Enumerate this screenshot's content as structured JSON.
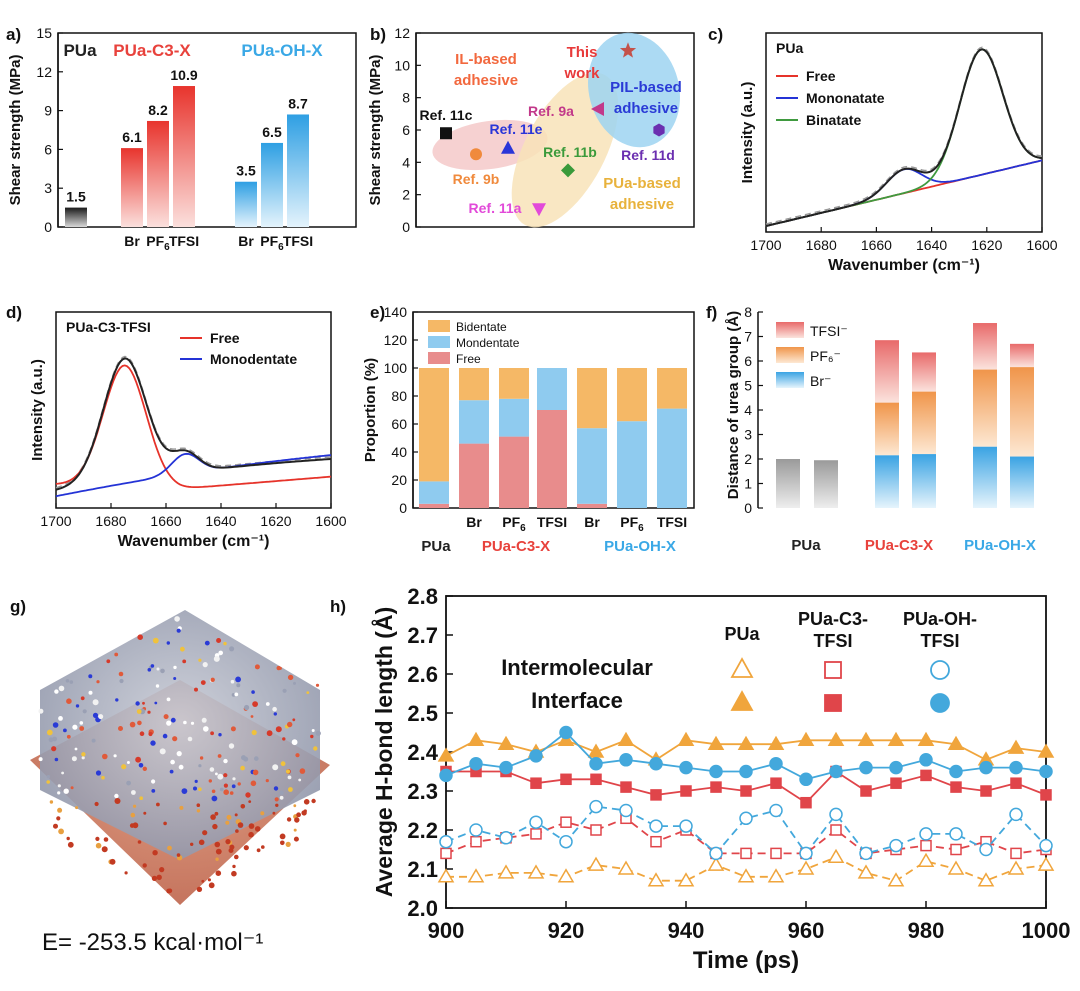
{
  "colors": {
    "pua": "#222222",
    "c3": "#e8423c",
    "oh": "#3aa8e6",
    "bidentate": "#f5b866",
    "mondentate": "#8fcbef",
    "free": "#e88c8c",
    "fit_free": "#e6332a",
    "fit_mono": "#2433d6",
    "fit_bin": "#3f9a3f",
    "pua_line": "#f0a53c",
    "c3_line": "#e0454a",
    "oh_line": "#43a8dc"
  },
  "chart_data": [
    {
      "panel": "a)",
      "type": "bar",
      "ylabel": "Shear strength (MPa)",
      "ylim": [
        0,
        15
      ],
      "yticks": [
        "0",
        "3",
        "6",
        "9",
        "12",
        "15"
      ],
      "group_titles": [
        "PUa",
        "PUa-C3-X",
        "PUa-OH-X"
      ],
      "categories": [
        "Br",
        "PF6",
        "TFSI",
        "Br",
        "PF6",
        "TFSI"
      ],
      "bars": [
        {
          "group": "PUa",
          "value": 1.5,
          "label": "1.5"
        },
        {
          "group": "PUa-C3-X",
          "value": 6.1,
          "label": "6.1"
        },
        {
          "group": "PUa-C3-X",
          "value": 8.2,
          "label": "8.2"
        },
        {
          "group": "PUa-C3-X",
          "value": 10.9,
          "label": "10.9"
        },
        {
          "group": "PUa-OH-X",
          "value": 3.5,
          "label": "3.5"
        },
        {
          "group": "PUa-OH-X",
          "value": 6.5,
          "label": "6.5"
        },
        {
          "group": "PUa-OH-X",
          "value": 8.7,
          "label": "8.7"
        }
      ]
    },
    {
      "panel": "b)",
      "type": "scatter",
      "ylabel": "Shear strength (MPa)",
      "ylim": [
        0,
        12
      ],
      "yticks": [
        "0",
        "2",
        "4",
        "6",
        "8",
        "10",
        "12"
      ],
      "regions": [
        "IL-based adhesive",
        "PIL-based adhesive",
        "PUa-based adhesive"
      ],
      "region_lines": [
        [
          "IL-based",
          "adhesive"
        ],
        [
          "PIL-based",
          "adhesive"
        ],
        [
          "PUa-based",
          "adhesive"
        ]
      ],
      "points": [
        {
          "label": "Ref. 11c",
          "y": 5.8,
          "marker": "square",
          "color": "#111111"
        },
        {
          "label": "Ref. 9b",
          "y": 4.5,
          "marker": "circle",
          "color": "#f08a3c"
        },
        {
          "label": "Ref. 11e",
          "y": 4.9,
          "marker": "triangle-up",
          "color": "#2a35d8"
        },
        {
          "label": "Ref. 11a",
          "y": 1.1,
          "marker": "triangle-down",
          "color": "#e24ad9"
        },
        {
          "label": "Ref. 11b",
          "y": 3.5,
          "marker": "diamond",
          "color": "#3a9a3a"
        },
        {
          "label": "Ref. 9a",
          "y": 7.3,
          "marker": "triangle-left",
          "color": "#c2398a"
        },
        {
          "label": "Ref. 11d",
          "y": 6.0,
          "marker": "hexagon",
          "color": "#6b2fb0"
        },
        {
          "label": "This work",
          "y": 10.9,
          "marker": "star",
          "color": "#c4524a",
          "lines": [
            "This",
            "work"
          ]
        }
      ]
    },
    {
      "panel": "c)",
      "type": "line",
      "inner_title": "PUa",
      "xlabel": "Wavenumber (cm⁻¹)",
      "ylabel": "Intensity (a.u.)",
      "xlim": [
        1700,
        1600
      ],
      "xticks": [
        "1700",
        "1680",
        "1660",
        "1640",
        "1620",
        "1600"
      ],
      "legend": [
        "Free",
        "Mononatate",
        "Binatate"
      ]
    },
    {
      "panel": "d)",
      "type": "line",
      "inner_title": "PUa-C3-TFSI",
      "xlabel": "Wavenumber (cm⁻¹)",
      "ylabel": "Intensity (a.u.)",
      "xlim": [
        1700,
        1600
      ],
      "xticks": [
        "1700",
        "1680",
        "1660",
        "1640",
        "1620",
        "1600"
      ],
      "legend": [
        "Free",
        "Monodentate"
      ]
    },
    {
      "panel": "e)",
      "type": "bar",
      "ylabel": "Proportion (%)",
      "ylim": [
        0,
        140
      ],
      "yticks": [
        "0",
        "20",
        "40",
        "60",
        "80",
        "100",
        "120",
        "140"
      ],
      "legend": [
        "Bidentate",
        "Mondentate",
        "Free"
      ],
      "categories": [
        "PUa",
        "Br",
        "PF6",
        "TFSI",
        "Br",
        "PF6",
        "TFSI"
      ],
      "group_titles": [
        "PUa",
        "PUa-C3-X",
        "PUa-OH-X"
      ],
      "series": [
        {
          "name": "Free",
          "values": [
            3,
            46,
            51,
            70,
            3,
            0,
            0
          ]
        },
        {
          "name": "Mondentate",
          "values": [
            16,
            31,
            27,
            30,
            54,
            62,
            71
          ]
        },
        {
          "name": "Bidentate",
          "values": [
            81,
            23,
            22,
            0,
            43,
            38,
            29
          ]
        }
      ]
    },
    {
      "panel": "f)",
      "type": "bar",
      "ylabel": "Distance of urea group (Å)",
      "ylim": [
        0,
        8
      ],
      "yticks": [
        "0",
        "1",
        "2",
        "3",
        "4",
        "5",
        "6",
        "7",
        "8"
      ],
      "legend": [
        "TFSI⁻",
        "PF₆⁻",
        "Br⁻"
      ],
      "group_titles": [
        "PUa",
        "PUa-C3-X",
        "PUa-OH-X"
      ],
      "bars": [
        {
          "group": "PUa",
          "value": 2.0
        },
        {
          "group": "PUa",
          "value": 1.95
        },
        {
          "group": "PUa-C3-X",
          "br": 2.15,
          "pf6": 4.3,
          "tfsi": 6.85
        },
        {
          "group": "PUa-C3-X",
          "br": 2.2,
          "pf6": 4.75,
          "tfsi": 6.35
        },
        {
          "group": "PUa-OH-X",
          "br": 2.5,
          "pf6": 5.65,
          "tfsi": 7.55
        },
        {
          "group": "PUa-OH-X",
          "br": 2.1,
          "pf6": 5.75,
          "tfsi": 6.7
        }
      ]
    },
    {
      "panel": "h)",
      "type": "line",
      "xlabel": "Time (ps)",
      "ylabel": "Average H-bond length (Å)",
      "xlim": [
        900,
        1000
      ],
      "ylim": [
        2.0,
        2.8
      ],
      "xticks": [
        "900",
        "920",
        "940",
        "960",
        "980",
        "1000"
      ],
      "yticks": [
        "2.0",
        "2.1",
        "2.2",
        "2.3",
        "2.4",
        "2.5",
        "2.6",
        "2.7",
        "2.8"
      ],
      "legend_cols": [
        [
          "PUa"
        ],
        [
          "PUa-C3-",
          "TFSI"
        ],
        [
          "PUa-OH-",
          "TFSI"
        ]
      ],
      "legend_rows": [
        "Intermolecular",
        "Interface"
      ],
      "x": [
        900,
        905,
        910,
        915,
        920,
        925,
        930,
        935,
        940,
        945,
        950,
        955,
        960,
        965,
        970,
        975,
        980,
        985,
        990,
        995,
        1000
      ],
      "series": [
        {
          "name": "PUa Interface",
          "values": [
            2.39,
            2.43,
            2.42,
            2.4,
            2.43,
            2.4,
            2.43,
            2.38,
            2.43,
            2.42,
            2.42,
            2.42,
            2.43,
            2.43,
            2.43,
            2.43,
            2.43,
            2.42,
            2.38,
            2.41,
            2.4
          ]
        },
        {
          "name": "PUa-C3-TFSI Interface",
          "values": [
            2.35,
            2.35,
            2.35,
            2.32,
            2.33,
            2.33,
            2.31,
            2.29,
            2.3,
            2.31,
            2.3,
            2.32,
            2.27,
            2.35,
            2.3,
            2.32,
            2.34,
            2.31,
            2.3,
            2.32,
            2.29
          ]
        },
        {
          "name": "PUa-OH-TFSI Interface",
          "values": [
            2.34,
            2.37,
            2.36,
            2.39,
            2.45,
            2.37,
            2.38,
            2.37,
            2.36,
            2.35,
            2.35,
            2.37,
            2.33,
            2.35,
            2.36,
            2.36,
            2.38,
            2.35,
            2.36,
            2.36,
            2.35
          ]
        },
        {
          "name": "PUa Intermolecular",
          "values": [
            2.08,
            2.08,
            2.09,
            2.09,
            2.08,
            2.11,
            2.1,
            2.07,
            2.07,
            2.11,
            2.08,
            2.08,
            2.1,
            2.13,
            2.09,
            2.07,
            2.12,
            2.1,
            2.07,
            2.1,
            2.11
          ]
        },
        {
          "name": "PUa-C3-TFSI Intermolecular",
          "values": [
            2.14,
            2.17,
            2.18,
            2.19,
            2.22,
            2.2,
            2.23,
            2.17,
            2.2,
            2.14,
            2.14,
            2.14,
            2.14,
            2.2,
            2.14,
            2.15,
            2.16,
            2.15,
            2.17,
            2.14,
            2.15
          ]
        },
        {
          "name": "PUa-OH-TFSI Intermolecular",
          "values": [
            2.17,
            2.2,
            2.18,
            2.22,
            2.17,
            2.26,
            2.25,
            2.21,
            2.21,
            2.14,
            2.23,
            2.25,
            2.14,
            2.24,
            2.14,
            2.16,
            2.19,
            2.19,
            2.15,
            2.24,
            2.16
          ]
        }
      ]
    }
  ],
  "panel_labels": [
    "a)",
    "b)",
    "c)",
    "d)",
    "e)",
    "f)",
    "g)",
    "h)"
  ],
  "panel_g": {
    "energy_label": "E= -253.5 kcal·mol⁻¹"
  }
}
